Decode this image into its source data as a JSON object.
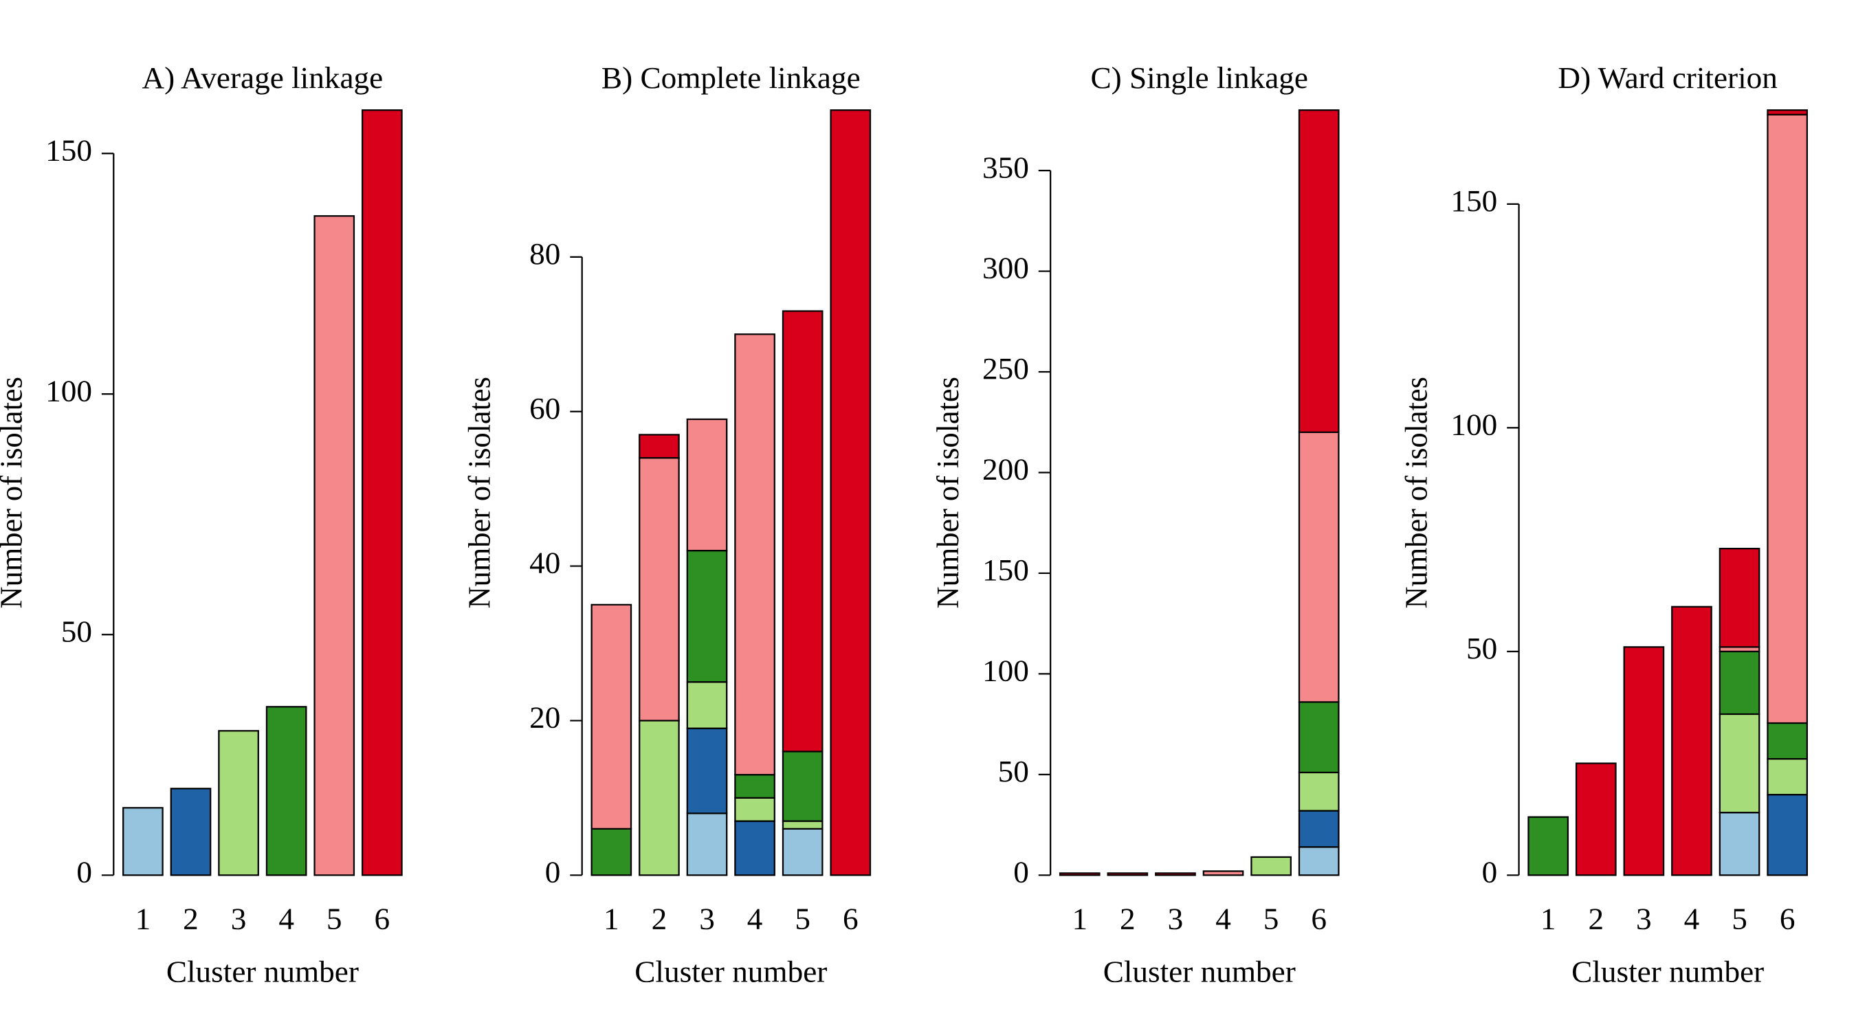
{
  "chart_data": [
    {
      "type": "bar",
      "stacked": true,
      "title": "A) Average linkage",
      "x_label": "Cluster number",
      "y_label": "Number of isolates",
      "categories": [
        "1",
        "2",
        "3",
        "4",
        "5",
        "6"
      ],
      "series": [
        {
          "color": "#96c3dd",
          "values": [
            14,
            0,
            0,
            0,
            0,
            0
          ]
        },
        {
          "color": "#1f62a6",
          "values": [
            0,
            18,
            0,
            0,
            0,
            0
          ]
        },
        {
          "color": "#a7dc7a",
          "values": [
            0,
            0,
            30,
            0,
            0,
            0
          ]
        },
        {
          "color": "#2e8f23",
          "values": [
            0,
            0,
            0,
            35,
            0,
            0
          ]
        },
        {
          "color": "#f4888a",
          "values": [
            0,
            0,
            0,
            0,
            137,
            0
          ]
        },
        {
          "color": "#d8001b",
          "values": [
            0,
            0,
            0,
            0,
            0,
            159
          ]
        }
      ],
      "ylim": [
        0,
        159
      ],
      "yticks": [
        0,
        50,
        100,
        150
      ]
    },
    {
      "type": "bar",
      "stacked": true,
      "title": "B) Complete linkage",
      "x_label": "Cluster number",
      "y_label": "Number of isolates",
      "categories": [
        "1",
        "2",
        "3",
        "4",
        "5",
        "6"
      ],
      "series": [
        {
          "color": "#96c3dd",
          "values": [
            0,
            0,
            8,
            0,
            6,
            0
          ]
        },
        {
          "color": "#1f62a6",
          "values": [
            0,
            0,
            11,
            7,
            0,
            0
          ]
        },
        {
          "color": "#a7dc7a",
          "values": [
            0,
            20,
            6,
            3,
            1,
            0
          ]
        },
        {
          "color": "#2e8f23",
          "values": [
            6,
            0,
            17,
            3,
            9,
            0
          ]
        },
        {
          "color": "#f4888a",
          "values": [
            29,
            34,
            17,
            57,
            0,
            0
          ]
        },
        {
          "color": "#d8001b",
          "values": [
            0,
            3,
            0,
            0,
            57,
            99
          ]
        }
      ],
      "ylim": [
        0,
        99
      ],
      "yticks": [
        0,
        20,
        40,
        60,
        80
      ]
    },
    {
      "type": "bar",
      "stacked": true,
      "title": "C) Single linkage",
      "x_label": "Cluster number",
      "y_label": "Number of isolates",
      "categories": [
        "1",
        "2",
        "3",
        "4",
        "5",
        "6"
      ],
      "series": [
        {
          "color": "#96c3dd",
          "values": [
            0,
            0,
            0,
            0,
            0,
            14
          ]
        },
        {
          "color": "#1f62a6",
          "values": [
            0,
            0,
            0,
            0,
            0,
            18
          ]
        },
        {
          "color": "#a7dc7a",
          "values": [
            0,
            0,
            0,
            0,
            9,
            19
          ]
        },
        {
          "color": "#2e8f23",
          "values": [
            0,
            0,
            0,
            0,
            0,
            35
          ]
        },
        {
          "color": "#f4888a",
          "values": [
            0,
            0,
            0,
            2,
            0,
            134
          ]
        },
        {
          "color": "#d8001b",
          "values": [
            1,
            1,
            1,
            0,
            0,
            160
          ]
        }
      ],
      "ylim": [
        0,
        380
      ],
      "yticks": [
        0,
        50,
        100,
        150,
        200,
        250,
        300,
        350
      ]
    },
    {
      "type": "bar",
      "stacked": true,
      "title": "D) Ward criterion",
      "x_label": "Cluster number",
      "y_label": "Number of isolates",
      "categories": [
        "1",
        "2",
        "3",
        "4",
        "5",
        "6"
      ],
      "series": [
        {
          "color": "#96c3dd",
          "values": [
            0,
            0,
            0,
            0,
            14,
            0
          ]
        },
        {
          "color": "#1f62a6",
          "values": [
            0,
            0,
            0,
            0,
            0,
            18
          ]
        },
        {
          "color": "#a7dc7a",
          "values": [
            0,
            0,
            0,
            0,
            22,
            8
          ]
        },
        {
          "color": "#2e8f23",
          "values": [
            13,
            0,
            0,
            0,
            14,
            8
          ]
        },
        {
          "color": "#f4888a",
          "values": [
            0,
            0,
            0,
            0,
            1,
            136
          ]
        },
        {
          "color": "#d8001b",
          "values": [
            0,
            25,
            51,
            60,
            22,
            1
          ]
        }
      ],
      "ylim": [
        0,
        171
      ],
      "yticks": [
        0,
        50,
        100,
        150
      ]
    }
  ]
}
